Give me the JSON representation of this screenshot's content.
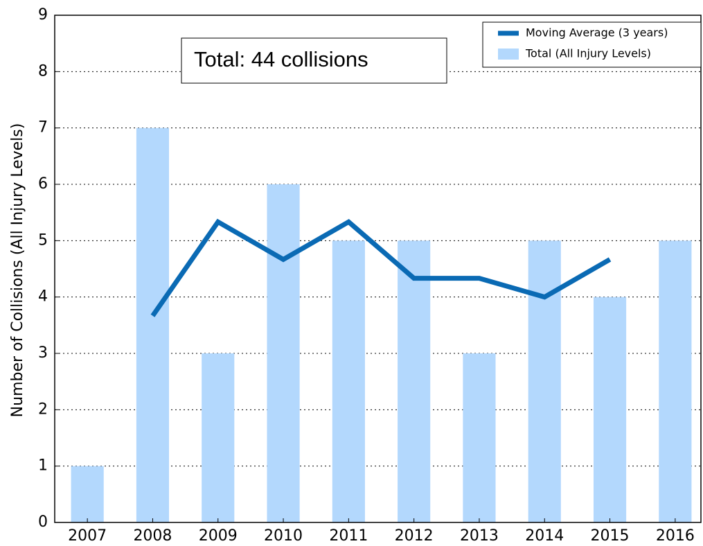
{
  "chart_data": {
    "type": "bar",
    "ylabel": "Number of Collisions (All Injury Levels)",
    "annotation": "Total: 44 collisions",
    "categories": [
      "2007",
      "2008",
      "2009",
      "2010",
      "2011",
      "2012",
      "2013",
      "2014",
      "2015",
      "2016"
    ],
    "series": [
      {
        "name": "Moving Average (3 years)",
        "type": "line",
        "color": "#0a6ab4",
        "values": [
          null,
          3.667,
          5.333,
          4.667,
          5.333,
          4.333,
          4.333,
          4.0,
          4.667,
          null
        ]
      },
      {
        "name": "Total (All Injury Levels)",
        "type": "bar",
        "color": "#b3d8fd",
        "values": [
          1,
          7,
          3,
          6,
          5,
          5,
          3,
          5,
          4,
          5
        ]
      }
    ],
    "ylim": [
      0,
      9
    ],
    "yticks": [
      0,
      1,
      2,
      3,
      4,
      5,
      6,
      7,
      8,
      9
    ],
    "grid": true,
    "legend": "upper right"
  }
}
